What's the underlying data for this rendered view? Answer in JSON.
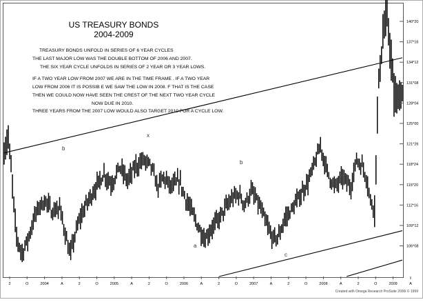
{
  "chart_data": {
    "type": "bar",
    "title": "US TREASURY BONDS",
    "subtitle": "2004-2009",
    "annotations": [
      "TREASURY BONDS UNFOLD IN SERIES OF 6 YEAR CYCLES",
      "THE LAST MAJOR LOW WAS THE DOUBLE BOTTOM OF 2006 AND 2007.",
      "THE SIX YEAR CYCLE UNFOLDS IN SERIES OF 2 YEAR OR 3 YEAR LOWS.",
      "IF A TWO YEAR LOW FROM 2007 WE ARE IN THE TIME FRAME . IF A TWO YEAR",
      "LOW FROM 2006 IT IS POSSIB E WE SAW THE LOW IN 2008. F THAT IS THE CASE",
      "THEN WE COULD NOW HAVE SEEN THE CREST OF THE NEXT TWO YEAR CYCLE",
      "NOW DUE IN 2010.",
      "THREE YEARS FROM THE  2007 LOW WOULD ALSO TARGET 2010 FOR A CYCLE LOW."
    ],
    "wave_labels": [
      "b",
      "x",
      "b",
      "a",
      "c"
    ],
    "y_tick_labels": [
      "140*20",
      "137*16",
      "134*12",
      "131*08",
      "128*04",
      "125*00",
      "121*26",
      "118*24",
      "115*20",
      "112*16",
      "109*12",
      "106*08"
    ],
    "x_tick_labels": [
      "2",
      "O",
      "2004",
      "A",
      "2",
      "O",
      "2005",
      "A",
      "2",
      "O",
      "2006",
      "A",
      "2",
      "O",
      "2007",
      "A",
      "2",
      "O",
      "2008",
      "A",
      "2",
      "O",
      "2009",
      "A"
    ],
    "ylim": [
      103.125,
      142.5
    ],
    "price_path": [
      {
        "t": 0.0,
        "v": 121.0
      },
      {
        "t": 0.01,
        "v": 123.5
      },
      {
        "t": 0.02,
        "v": 117.0
      },
      {
        "t": 0.03,
        "v": 109.0
      },
      {
        "t": 0.045,
        "v": 106.5
      },
      {
        "t": 0.06,
        "v": 108.5
      },
      {
        "t": 0.075,
        "v": 111.5
      },
      {
        "t": 0.09,
        "v": 113.5
      },
      {
        "t": 0.105,
        "v": 114.0
      },
      {
        "t": 0.12,
        "v": 112.5
      },
      {
        "t": 0.14,
        "v": 113.0
      },
      {
        "t": 0.155,
        "v": 109.0
      },
      {
        "t": 0.165,
        "v": 106.0
      },
      {
        "t": 0.175,
        "v": 108.5
      },
      {
        "t": 0.19,
        "v": 111.5
      },
      {
        "t": 0.21,
        "v": 114.0
      },
      {
        "t": 0.23,
        "v": 116.0
      },
      {
        "t": 0.25,
        "v": 118.0
      },
      {
        "t": 0.27,
        "v": 116.5
      },
      {
        "t": 0.29,
        "v": 119.0
      },
      {
        "t": 0.31,
        "v": 117.0
      },
      {
        "t": 0.33,
        "v": 119.0
      },
      {
        "t": 0.35,
        "v": 120.0
      },
      {
        "t": 0.37,
        "v": 119.0
      },
      {
        "t": 0.385,
        "v": 116.0
      },
      {
        "t": 0.4,
        "v": 117.5
      },
      {
        "t": 0.42,
        "v": 116.0
      },
      {
        "t": 0.44,
        "v": 117.0
      },
      {
        "t": 0.455,
        "v": 114.5
      },
      {
        "t": 0.475,
        "v": 112.0
      },
      {
        "t": 0.49,
        "v": 110.0
      },
      {
        "t": 0.505,
        "v": 108.5
      },
      {
        "t": 0.52,
        "v": 110.0
      },
      {
        "t": 0.54,
        "v": 111.5
      },
      {
        "t": 0.555,
        "v": 113.0
      },
      {
        "t": 0.575,
        "v": 114.5
      },
      {
        "t": 0.59,
        "v": 115.0
      },
      {
        "t": 0.605,
        "v": 113.5
      },
      {
        "t": 0.62,
        "v": 115.5
      },
      {
        "t": 0.64,
        "v": 113.5
      },
      {
        "t": 0.66,
        "v": 110.5
      },
      {
        "t": 0.675,
        "v": 108.5
      },
      {
        "t": 0.69,
        "v": 109.0
      },
      {
        "t": 0.705,
        "v": 111.5
      },
      {
        "t": 0.725,
        "v": 113.0
      },
      {
        "t": 0.745,
        "v": 115.0
      },
      {
        "t": 0.765,
        "v": 117.0
      },
      {
        "t": 0.78,
        "v": 119.5
      },
      {
        "t": 0.795,
        "v": 122.0
      },
      {
        "t": 0.81,
        "v": 118.5
      },
      {
        "t": 0.83,
        "v": 116.0
      },
      {
        "t": 0.85,
        "v": 117.5
      },
      {
        "t": 0.87,
        "v": 116.0
      },
      {
        "t": 0.885,
        "v": 120.0
      },
      {
        "t": 0.9,
        "v": 119.0
      },
      {
        "t": 0.91,
        "v": 117.5
      },
      {
        "t": 0.92,
        "v": 114.0
      },
      {
        "t": 0.93,
        "v": 113.0
      },
      {
        "t": 0.94,
        "v": 131.0
      },
      {
        "t": 0.95,
        "v": 137.0
      },
      {
        "t": 0.96,
        "v": 141.0
      },
      {
        "t": 0.97,
        "v": 136.0
      },
      {
        "t": 0.98,
        "v": 128.5
      },
      {
        "t": 0.99,
        "v": 129.0
      },
      {
        "t": 1.0,
        "v": 129.5
      }
    ],
    "trendlines": [
      {
        "t0": 0.0,
        "v0": 121.0,
        "t1": 1.0,
        "v1": 134.75
      },
      {
        "t0": 0.54,
        "v0": 103.125,
        "t1": 1.0,
        "v1": 109.75
      },
      {
        "t0": 0.86,
        "v0": 103.125,
        "t1": 1.0,
        "v1": 105.5
      }
    ],
    "grid": false,
    "legend": "none"
  },
  "footer": {
    "credit": "Created with Omega Research ProSuite 2000i © 1999"
  }
}
